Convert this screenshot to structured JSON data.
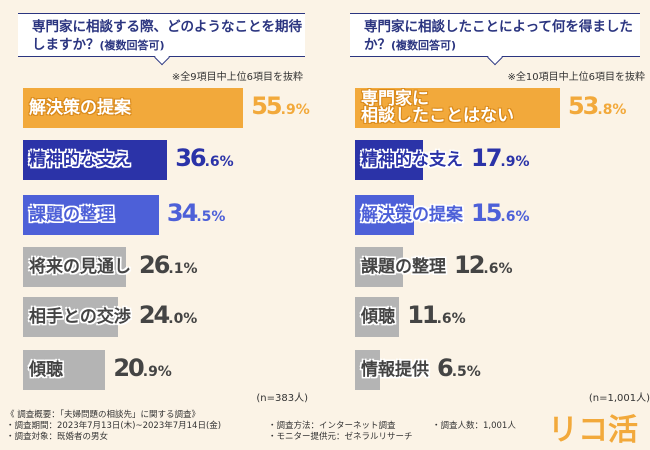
{
  "chart_data": [
    {
      "type": "bar",
      "title": "専門家に相談する際、どのようなことを期待しますか？",
      "subtitle": "(複数回答可)",
      "note": "※全9項目中上位6項目を抜粋",
      "sample": "(n=383人)",
      "categories": [
        "解決策の提案",
        "精神的な支え",
        "課題の整理",
        "将来の見通し",
        "相手との交渉",
        "傾聴"
      ],
      "values": [
        55.9,
        36.6,
        34.5,
        26.1,
        24.0,
        20.9
      ],
      "unit": "%",
      "colors": [
        "#f2a93b",
        "#2b33a8",
        "#4d60d8",
        "#b4b4b4",
        "#b4b4b4",
        "#b4b4b4"
      ]
    },
    {
      "type": "bar",
      "title": "専門家に相談したことによって何を得ましたか？",
      "subtitle": "(複数回答可)",
      "note": "※全10項目中上位6項目を抜粋",
      "sample": "(n=1,001人)",
      "categories": [
        "専門家に\n相談したことはない",
        "精神的な支え",
        "解決策の提案",
        "課題の整理",
        "傾聴",
        "情報提供"
      ],
      "values": [
        53.8,
        17.9,
        15.6,
        12.6,
        11.6,
        6.5
      ],
      "unit": "%",
      "colors": [
        "#f2a93b",
        "#2b33a8",
        "#4d60d8",
        "#b4b4b4",
        "#b4b4b4",
        "#b4b4b4"
      ]
    }
  ],
  "footer": {
    "heading": "《 調査概要：「夫婦問題の相談先」に関する調査》",
    "period": "・調査期間：2023年7月13日(木)~2023年7月14日(金)",
    "target": "・調査対象：既婚者の男女",
    "method": "・調査方法：インターネット調査",
    "provider": "・モニター提供元：ゼネラルリサーチ",
    "count": "・調査人数：1,001人"
  },
  "logo": "リコ活"
}
